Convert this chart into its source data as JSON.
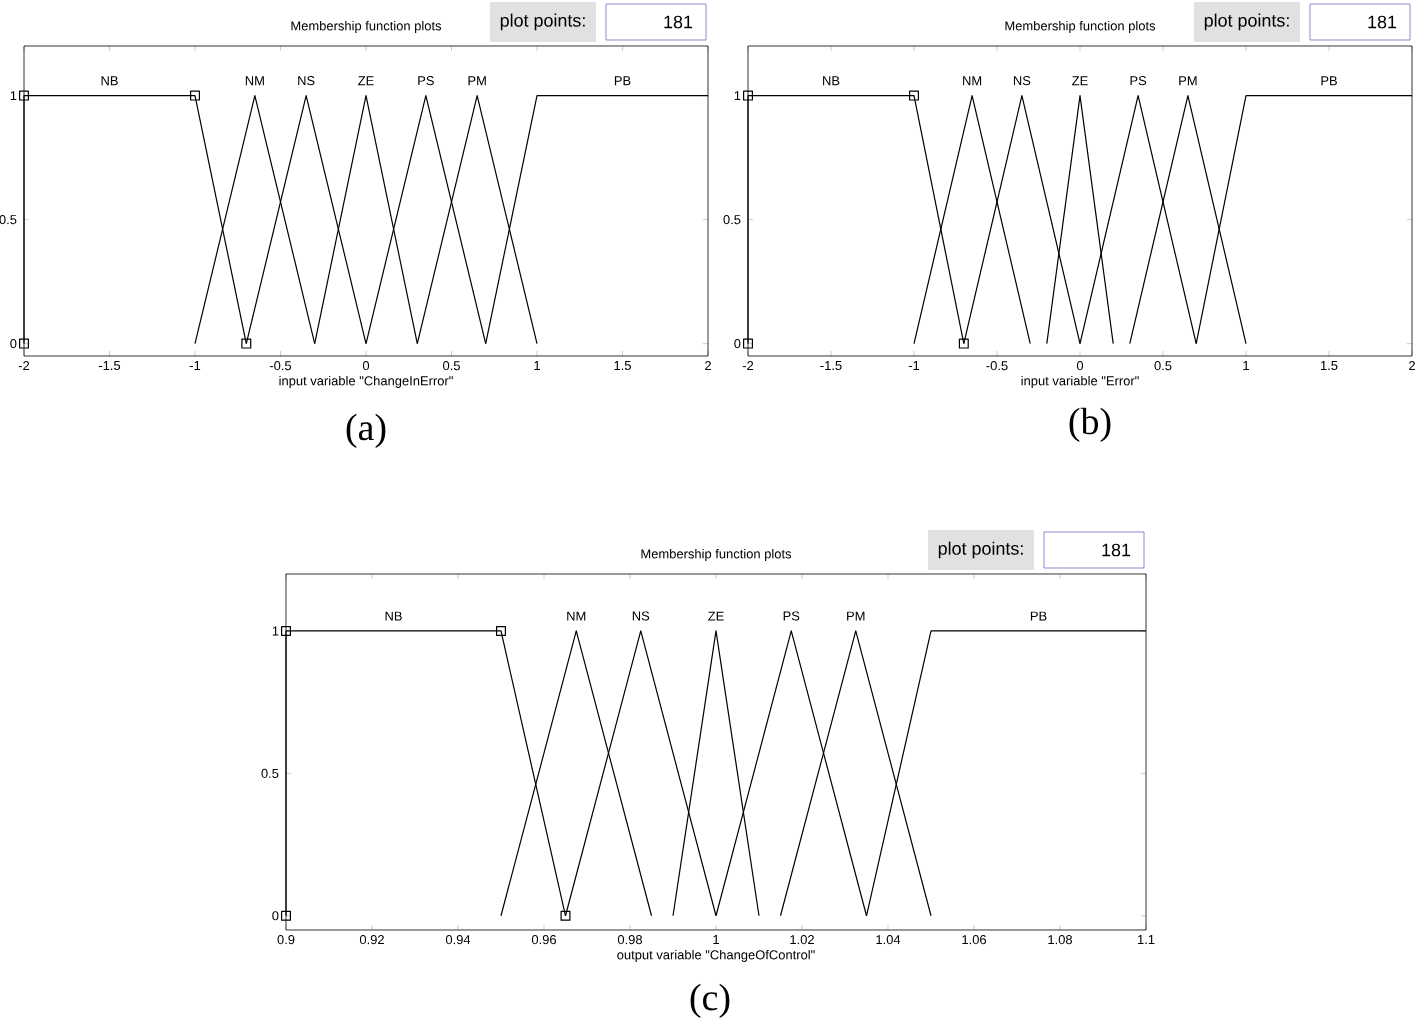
{
  "chart_data": [
    {
      "type": "line",
      "title": "Membership function plots",
      "xlabel": "input variable \"ChangeInError\"",
      "xlim": [
        -2,
        2
      ],
      "ylim": [
        -0.05,
        1.2
      ],
      "xticks": [
        -2,
        -1.5,
        -1,
        -0.5,
        0,
        0.5,
        1,
        1.5,
        2
      ],
      "yticks": [
        0,
        0.5,
        1
      ],
      "legend": false,
      "annotations": [
        "plot points:",
        "181",
        "(a)"
      ],
      "series": [
        {
          "name": "NB",
          "color": "#000000",
          "marker": "square",
          "x": [
            -2,
            -2,
            -1,
            -0.7
          ],
          "values": [
            0,
            1,
            1,
            0
          ]
        },
        {
          "name": "NM",
          "color": "#000000",
          "x": [
            -1,
            -0.65,
            -0.3
          ],
          "values": [
            0,
            1,
            0
          ]
        },
        {
          "name": "NS",
          "color": "#000000",
          "x": [
            -0.7,
            -0.35,
            0
          ],
          "values": [
            0,
            1,
            0
          ]
        },
        {
          "name": "ZE",
          "color": "#000000",
          "x": [
            -0.3,
            0,
            0.3
          ],
          "values": [
            0,
            1,
            0
          ]
        },
        {
          "name": "PS",
          "color": "#000000",
          "x": [
            0,
            0.35,
            0.7
          ],
          "values": [
            0,
            1,
            0
          ]
        },
        {
          "name": "PM",
          "color": "#000000",
          "x": [
            0.3,
            0.65,
            1
          ],
          "values": [
            0,
            1,
            0
          ]
        },
        {
          "name": "PB",
          "color": "#000000",
          "x": [
            0.7,
            1,
            2
          ],
          "values": [
            0,
            1,
            1
          ]
        }
      ]
    },
    {
      "type": "line",
      "title": "Membership function plots",
      "xlabel": "input variable \"Error\"",
      "xlim": [
        -2,
        2
      ],
      "ylim": [
        -0.05,
        1.2
      ],
      "xticks": [
        -2,
        -1.5,
        -1,
        -0.5,
        0,
        0.5,
        1,
        1.5,
        2
      ],
      "yticks": [
        0,
        0.5,
        1
      ],
      "legend": false,
      "annotations": [
        "plot points:",
        "181",
        "(b)"
      ],
      "series": [
        {
          "name": "NB",
          "color": "#000000",
          "marker": "square",
          "x": [
            -2,
            -2,
            -1,
            -0.7
          ],
          "values": [
            0,
            1,
            1,
            0
          ]
        },
        {
          "name": "NM",
          "color": "#000000",
          "x": [
            -1,
            -0.65,
            -0.3
          ],
          "values": [
            0,
            1,
            0
          ]
        },
        {
          "name": "NS",
          "color": "#000000",
          "x": [
            -0.7,
            -0.35,
            0
          ],
          "values": [
            0,
            1,
            0
          ]
        },
        {
          "name": "ZE",
          "color": "#000000",
          "x": [
            -0.2,
            0,
            0.2
          ],
          "values": [
            0,
            1,
            0
          ]
        },
        {
          "name": "PS",
          "color": "#000000",
          "x": [
            0,
            0.35,
            0.7
          ],
          "values": [
            0,
            1,
            0
          ]
        },
        {
          "name": "PM",
          "color": "#000000",
          "x": [
            0.3,
            0.65,
            1
          ],
          "values": [
            0,
            1,
            0
          ]
        },
        {
          "name": "PB",
          "color": "#000000",
          "x": [
            0.7,
            1,
            2
          ],
          "values": [
            0,
            1,
            1
          ]
        }
      ]
    },
    {
      "type": "line",
      "title": "Membership function plots",
      "xlabel": "output variable \"ChangeOfControl\"",
      "xlim": [
        0.9,
        1.1
      ],
      "ylim": [
        -0.05,
        1.2
      ],
      "xticks": [
        0.9,
        0.92,
        0.94,
        0.96,
        0.98,
        1,
        1.02,
        1.04,
        1.06,
        1.08,
        1.1
      ],
      "yticks": [
        0,
        0.5,
        1
      ],
      "legend": false,
      "annotations": [
        "plot points:",
        "181",
        "(c)"
      ],
      "series": [
        {
          "name": "NB",
          "color": "#000000",
          "marker": "square",
          "x": [
            0.9,
            0.9,
            0.95,
            0.965
          ],
          "values": [
            0,
            1,
            1,
            0
          ]
        },
        {
          "name": "NM",
          "color": "#000000",
          "x": [
            0.95,
            0.9675,
            0.985
          ],
          "values": [
            0,
            1,
            0
          ]
        },
        {
          "name": "NS",
          "color": "#000000",
          "x": [
            0.965,
            0.9825,
            1
          ],
          "values": [
            0,
            1,
            0
          ]
        },
        {
          "name": "ZE",
          "color": "#000000",
          "x": [
            0.99,
            1,
            1.01
          ],
          "values": [
            0,
            1,
            0
          ]
        },
        {
          "name": "PS",
          "color": "#000000",
          "x": [
            1,
            1.0175,
            1.035
          ],
          "values": [
            0,
            1,
            0
          ]
        },
        {
          "name": "PM",
          "color": "#000000",
          "x": [
            1.015,
            1.0325,
            1.05
          ],
          "values": [
            0,
            1,
            0
          ]
        },
        {
          "name": "PB",
          "color": "#000000",
          "x": [
            1.035,
            1.05,
            1.1
          ],
          "values": [
            0,
            1,
            1
          ]
        }
      ]
    }
  ]
}
